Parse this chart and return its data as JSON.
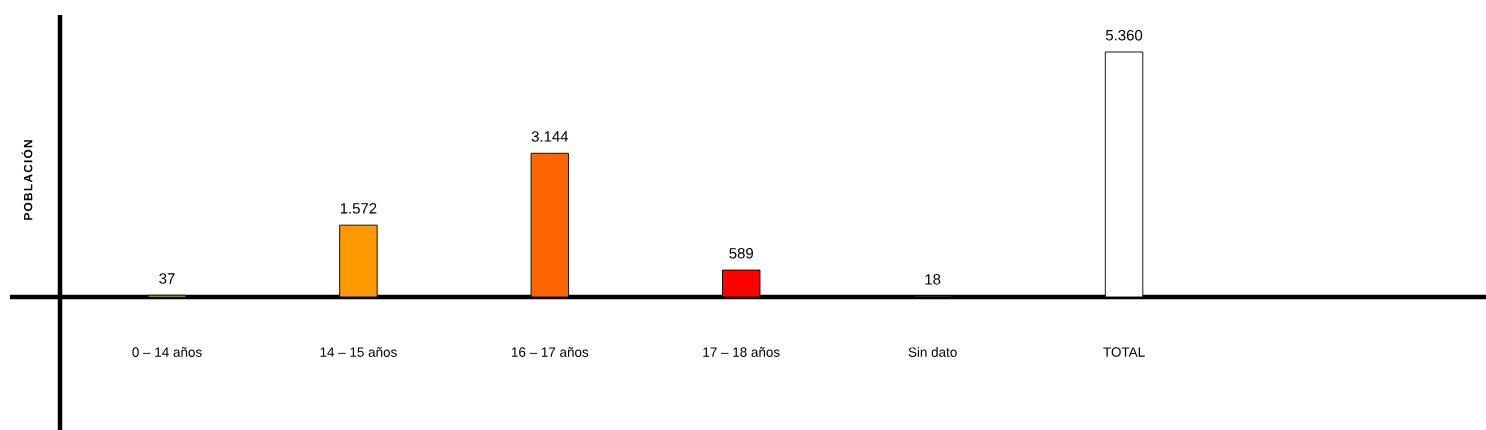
{
  "chart_data": {
    "type": "bar",
    "ylabel": "POBLACIÓN",
    "categories": [
      "0 – 14 años",
      "14 – 15 años",
      "16 – 17 años",
      "17 – 18 años",
      "Sin dato",
      "TOTAL"
    ],
    "values": [
      37,
      1572,
      3144,
      589,
      18,
      5360
    ],
    "colors": [
      "#ffff00",
      "#ff9900",
      "#ff6600",
      "#ff0000",
      "#c4dde3",
      "#ffffff"
    ],
    "value_labels": [
      "37",
      "1.572",
      "3.144",
      "589",
      "18",
      "5.360"
    ],
    "tick_labels": "x"
  }
}
